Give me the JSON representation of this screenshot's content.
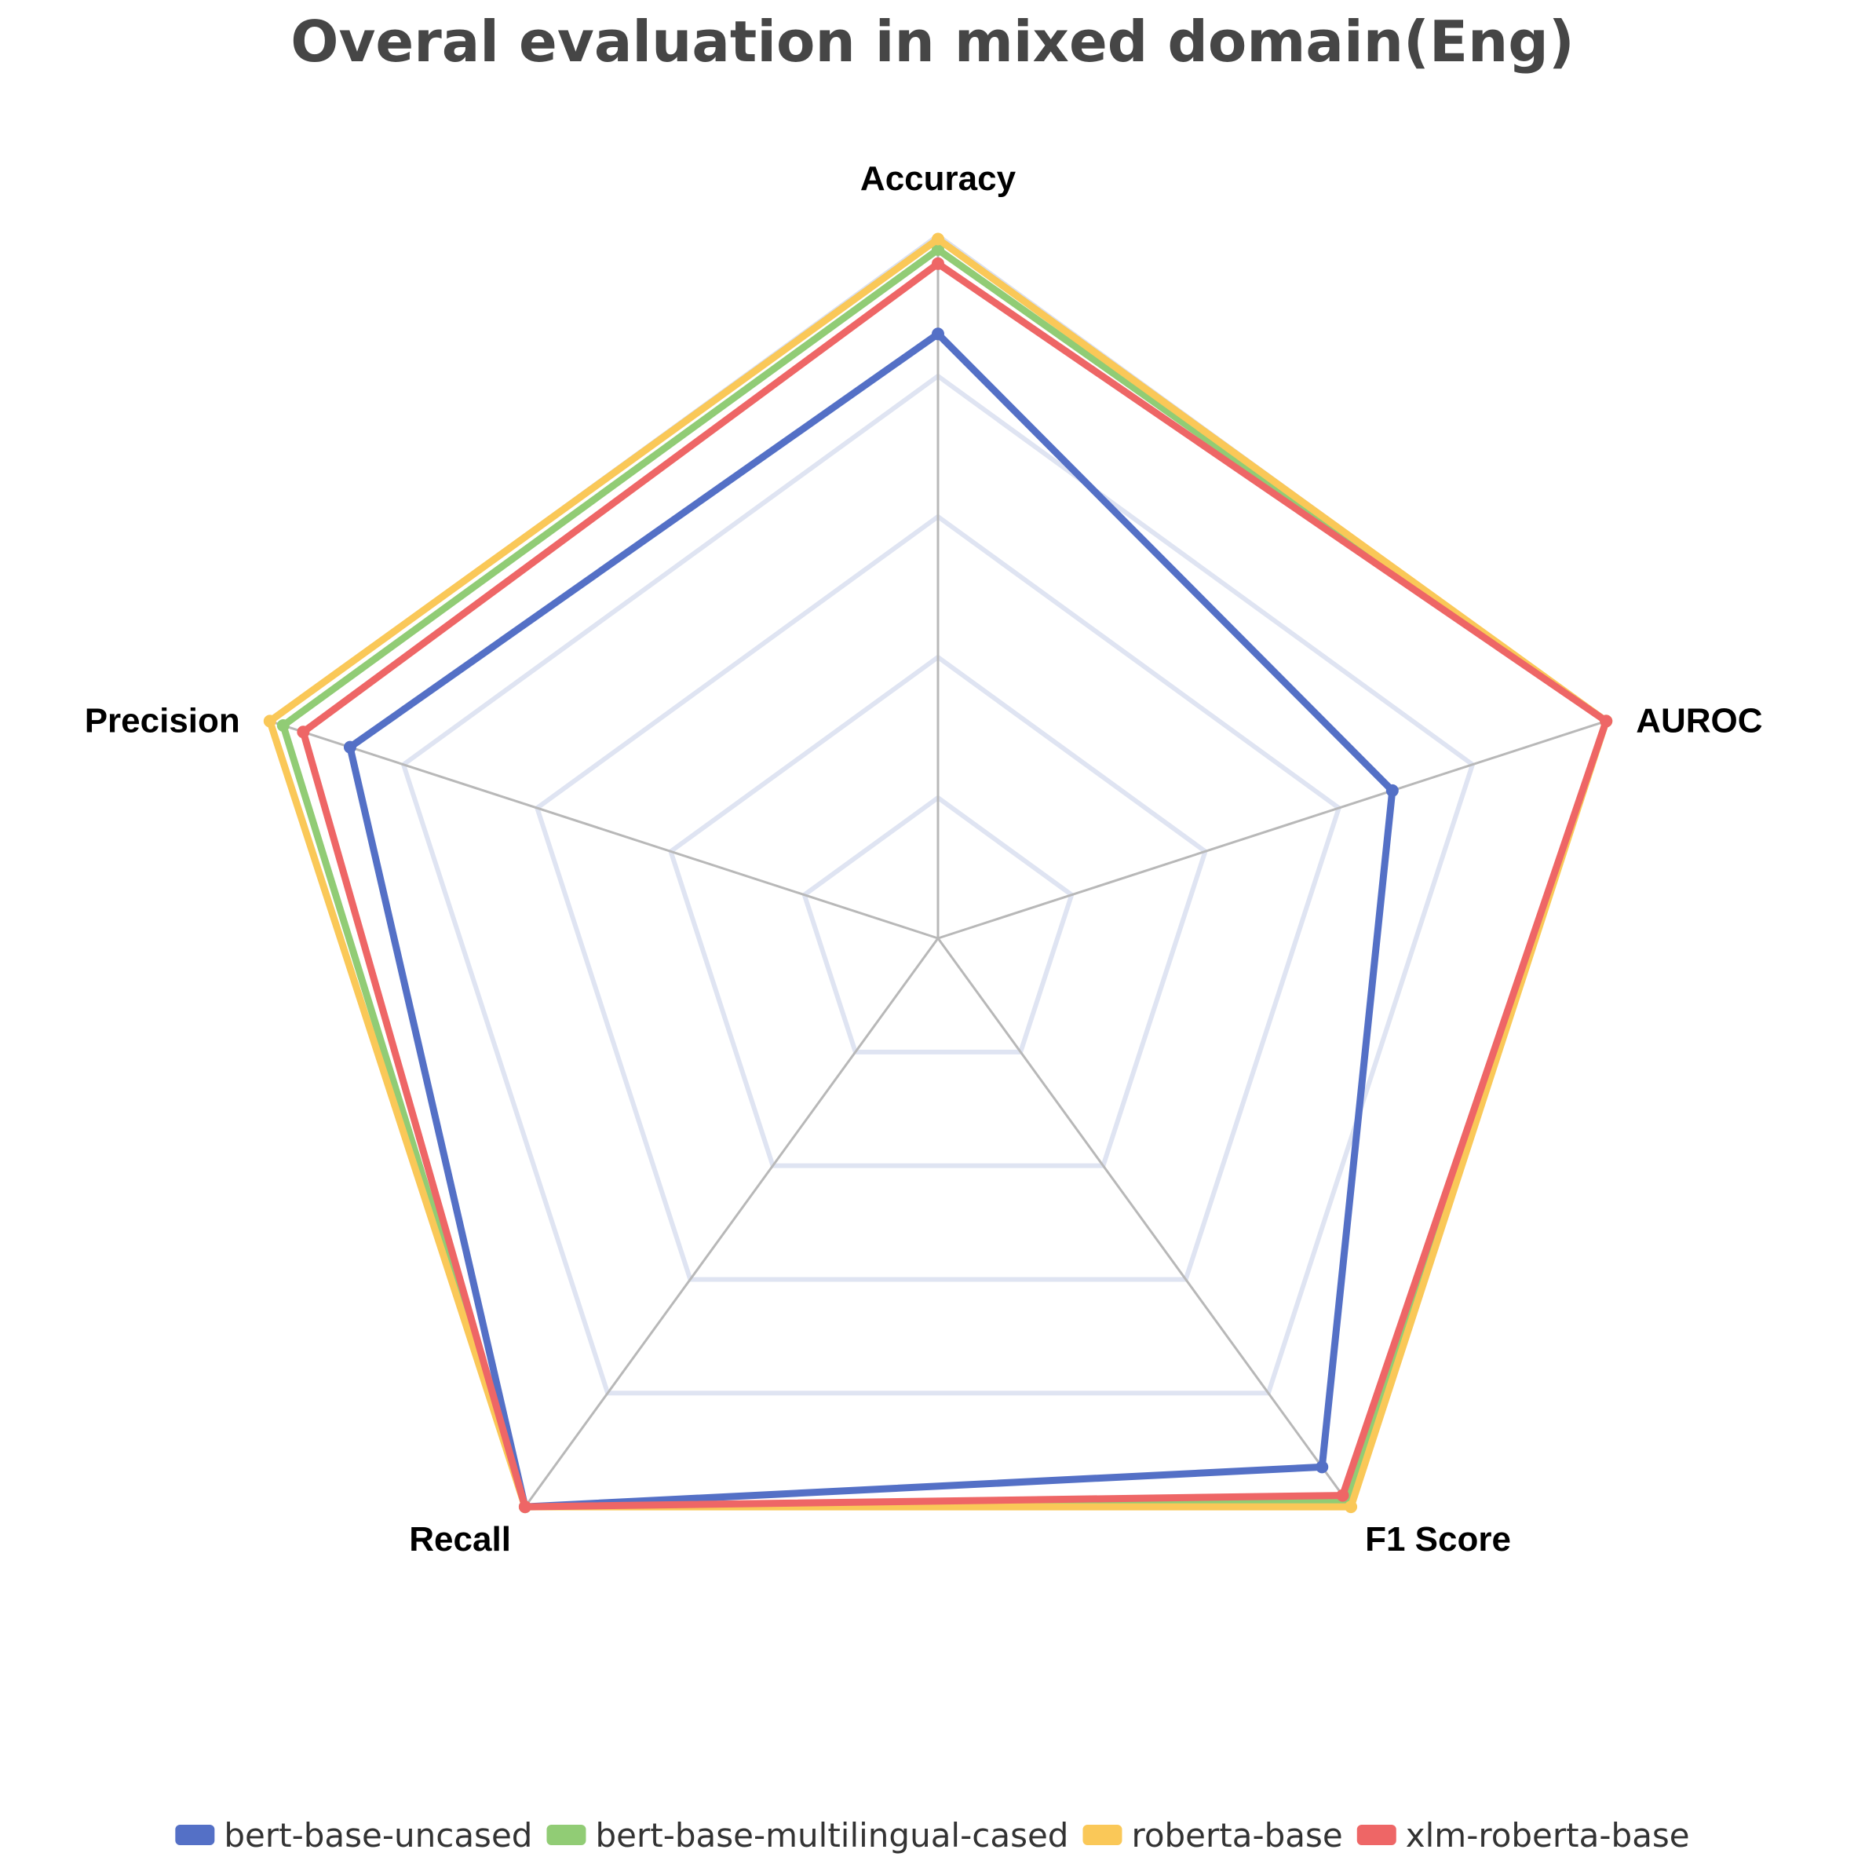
{
  "chart_data": {
    "type": "radar",
    "title": "Overal evaluation in mixed domain(Eng)",
    "indicators": [
      "Accuracy",
      "AUROC",
      "F1 Score",
      "Recall",
      "Precision"
    ],
    "range": [
      0,
      1
    ],
    "rings": 5,
    "grid": true,
    "legend_position": "bottom",
    "series": [
      {
        "name": "bert-base-uncased",
        "color": "#5470c6",
        "values": [
          0.86,
          0.68,
          0.93,
          1.0,
          0.88
        ]
      },
      {
        "name": "bert-base-multilingual-cased",
        "color": "#91cc75",
        "values": [
          0.98,
          1.0,
          0.99,
          1.0,
          0.98
        ]
      },
      {
        "name": "roberta-base",
        "color": "#fac858",
        "values": [
          0.995,
          1.0,
          1.0,
          1.0,
          1.0
        ]
      },
      {
        "name": "xlm-roberta-base",
        "color": "#ee6666",
        "values": [
          0.96,
          1.0,
          0.98,
          1.0,
          0.95
        ]
      }
    ]
  }
}
